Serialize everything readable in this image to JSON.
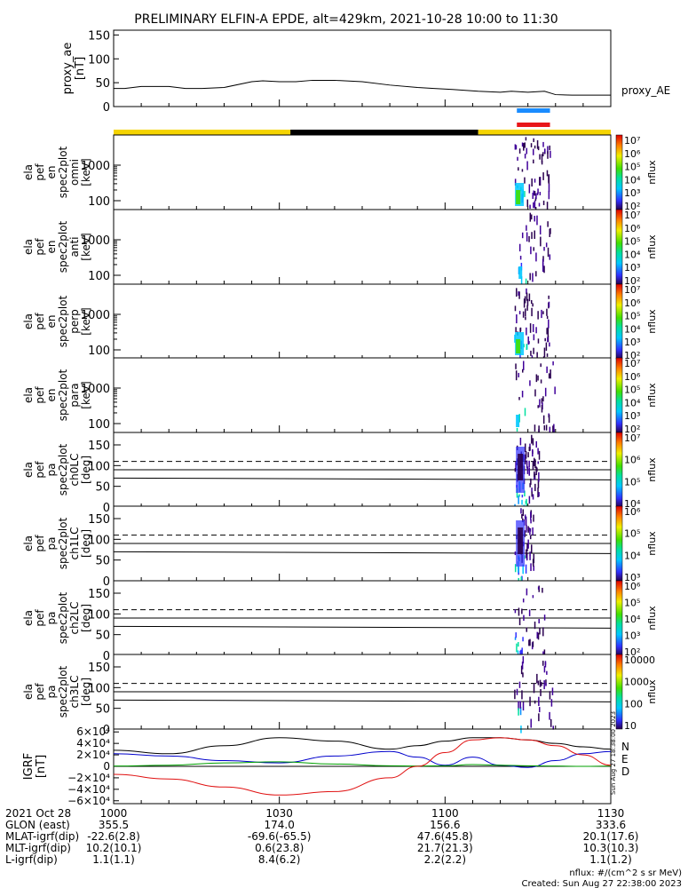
{
  "title": "PRELIMINARY ELFIN-A EPDE, alt=429km, 2021-10-28 10:00 to 11:30",
  "footer": {
    "units": "nflux: #/(cm^2 s sr MeV)",
    "created": "Created: Sun Aug 27 22:38:00 2023",
    "side_stamp": "Sun Aug 27 18:38:00 2023"
  },
  "chart_data": {
    "type": "multi-panel",
    "x_range": [
      "10:00",
      "11:30"
    ],
    "panels": [
      {
        "id": "proxy_ae",
        "type": "line",
        "ylabel": [
          "proxy_ae",
          "[nT]"
        ],
        "legend": "proxy_AE",
        "ylim": [
          0,
          160
        ],
        "yticks": [
          "150",
          "100",
          "50",
          "0"
        ],
        "x_min": [
          0,
          2,
          5,
          10,
          13,
          16,
          20,
          25,
          27,
          30,
          33,
          36,
          40,
          45,
          50,
          55,
          58,
          61,
          66,
          70,
          72,
          75,
          78,
          80,
          83,
          86,
          90
        ],
        "values": [
          38,
          38,
          42,
          42,
          38,
          38,
          40,
          52,
          54,
          52,
          52,
          55,
          55,
          52,
          45,
          40,
          38,
          36,
          32,
          30,
          32,
          30,
          32,
          25,
          24,
          24,
          24
        ]
      },
      {
        "id": "ephemeris_bar",
        "type": "segments",
        "segments": [
          {
            "from_min": 0,
            "to_min": 32,
            "color": "#f5d400"
          },
          {
            "from_min": 32,
            "to_min": 66,
            "color": "#000000"
          },
          {
            "from_min": 66,
            "to_min": 90,
            "color": "#f5d400"
          }
        ]
      },
      {
        "id": "science_zones",
        "type": "segments",
        "segments": [
          {
            "from_min": 73,
            "to_min": 79,
            "color": "#1a8cff",
            "row": 0
          },
          {
            "from_min": 73,
            "to_min": 79,
            "color": "#e8161a",
            "row": 1
          }
        ]
      },
      {
        "id": "en_omni",
        "type": "heatmap",
        "ylabel": [
          "ela",
          "pef",
          "en",
          "spec2plot",
          "omni",
          "[keV]"
        ],
        "yticks": [
          "1000",
          "100"
        ],
        "colorbar": {
          "label": "nflux",
          "ticks": [
            "10⁷",
            "10⁶",
            "10⁵",
            "10⁴",
            "10³",
            "10²"
          ]
        },
        "activity_min": [
          72.5,
          79
        ],
        "activity_level": 0.9
      },
      {
        "id": "en_anti",
        "type": "heatmap",
        "ylabel": [
          "ela",
          "pef",
          "en",
          "spec2plot",
          "anti",
          "[keV]"
        ],
        "yticks": [
          "1000",
          "100"
        ],
        "colorbar": {
          "label": "nflux",
          "ticks": [
            "10⁷",
            "10⁶",
            "10⁵",
            "10⁴",
            "10³",
            "10²"
          ]
        },
        "activity_min": [
          73,
          79
        ],
        "activity_level": 0.3
      },
      {
        "id": "en_perp",
        "type": "heatmap",
        "ylabel": [
          "ela",
          "pef",
          "en",
          "spec2plot",
          "perp",
          "[keV]"
        ],
        "yticks": [
          "1000",
          "100"
        ],
        "colorbar": {
          "label": "nflux",
          "ticks": [
            "10⁷",
            "10⁶",
            "10⁵",
            "10⁴",
            "10³",
            "10²"
          ]
        },
        "activity_min": [
          72.5,
          79
        ],
        "activity_level": 0.8
      },
      {
        "id": "en_para",
        "type": "heatmap",
        "ylabel": [
          "ela",
          "pef",
          "en",
          "spec2plot",
          "para",
          "[keV]"
        ],
        "yticks": [
          "1000",
          "100"
        ],
        "colorbar": {
          "label": "nflux",
          "ticks": [
            "10⁷",
            "10⁶",
            "10⁵",
            "10⁴",
            "10³",
            "10²"
          ]
        },
        "activity_min": [
          72.5,
          80
        ],
        "activity_level": 0.4
      },
      {
        "id": "pa_ch0LC",
        "type": "heatmap",
        "ylabel": [
          "ela",
          "pef",
          "pa",
          "spec2plot",
          "ch0LC",
          "[deg]"
        ],
        "yticks": [
          "150",
          "100",
          "50",
          "0"
        ],
        "ylim": [
          0,
          180
        ],
        "colorbar": {
          "label": "nflux",
          "ticks": [
            "10⁷",
            "10⁶",
            "10⁵",
            "10⁴"
          ]
        },
        "lc_lines": {
          "dashed": 110,
          "solid": [
            90,
            70
          ]
        },
        "activity_min": [
          72.5,
          77
        ],
        "activity_level": 1.0
      },
      {
        "id": "pa_ch1LC",
        "type": "heatmap",
        "ylabel": [
          "ela",
          "pef",
          "pa",
          "spec2plot",
          "ch1LC",
          "[deg]"
        ],
        "yticks": [
          "150",
          "100",
          "50",
          "0"
        ],
        "ylim": [
          0,
          180
        ],
        "colorbar": {
          "label": "nflux",
          "ticks": [
            "10⁶",
            "10⁵",
            "10⁴",
            "10³"
          ]
        },
        "lc_lines": {
          "dashed": 110,
          "solid": [
            90,
            70
          ]
        },
        "activity_min": [
          72.5,
          76
        ],
        "activity_level": 0.7
      },
      {
        "id": "pa_ch2LC",
        "type": "heatmap",
        "ylabel": [
          "ela",
          "pef",
          "pa",
          "spec2plot",
          "ch2LC",
          "[deg]"
        ],
        "yticks": [
          "150",
          "100",
          "50",
          "0"
        ],
        "ylim": [
          0,
          180
        ],
        "colorbar": {
          "label": "nflux",
          "ticks": [
            "10⁶",
            "10⁵",
            "10⁴",
            "10³",
            "10²"
          ]
        },
        "lc_lines": {
          "dashed": 110,
          "solid": [
            90,
            70
          ]
        },
        "activity_min": [
          72.5,
          78
        ],
        "activity_level": 0.3
      },
      {
        "id": "pa_ch3LC",
        "type": "heatmap",
        "ylabel": [
          "ela",
          "pef",
          "pa",
          "spec2plot",
          "ch3LC",
          "[deg]"
        ],
        "yticks": [
          "150",
          "100",
          "50",
          "0"
        ],
        "ylim": [
          0,
          180
        ],
        "colorbar": {
          "label": "nflux",
          "ticks": [
            "10000",
            "1000",
            "100",
            "10"
          ]
        },
        "lc_lines": {
          "dashed": 110,
          "solid": [
            90,
            70
          ]
        },
        "activity_min": [
          72.5,
          79.5
        ],
        "activity_level": 0.4
      },
      {
        "id": "igrf",
        "type": "line",
        "ylabel": [
          "IGRF",
          "[nT]"
        ],
        "ylim": [
          -65000,
          65000
        ],
        "yticks": [
          "6×10⁴",
          "4×10⁴",
          "2×10⁴",
          "0",
          "−2×10⁴",
          "−4×10⁴",
          "−6×10⁴"
        ],
        "ytick_values": [
          60000,
          40000,
          20000,
          0,
          -20000,
          -40000,
          -60000
        ],
        "legend": [
          {
            "label": "N",
            "color": "#0000cc"
          },
          {
            "label": "E",
            "color": "#00a000"
          },
          {
            "label": "D",
            "color": "#e01010"
          }
        ],
        "x_min": [
          0,
          10,
          20,
          30,
          40,
          50,
          55,
          60,
          65,
          70,
          75,
          80,
          85,
          90
        ],
        "series": [
          {
            "name": "total",
            "color": "#000000",
            "values": [
              28000,
              22000,
              36000,
              50000,
              44000,
              30000,
              36000,
              44000,
              50000,
              50000,
              46000,
              40000,
              34000,
              30000
            ]
          },
          {
            "name": "N",
            "color": "#0000cc",
            "values": [
              22000,
              18000,
              10000,
              6000,
              18000,
              26000,
              16000,
              2000,
              16000,
              2000,
              -2000,
              10000,
              22000,
              26000
            ]
          },
          {
            "name": "E",
            "color": "#00a000",
            "values": [
              500,
              2000,
              6000,
              8000,
              4000,
              1000,
              500,
              1000,
              3000,
              2000,
              1000,
              500,
              0,
              500
            ]
          },
          {
            "name": "D",
            "color": "#e01010",
            "values": [
              -14000,
              -22000,
              -36000,
              -50000,
              -44000,
              -20000,
              0,
              24000,
              46000,
              50000,
              46000,
              36000,
              20000,
              2000
            ]
          }
        ]
      }
    ],
    "x_axis_table": {
      "labels": [
        "2021 Oct 28",
        "GLON (east)",
        "MLAT-igrf(dip)",
        "MLT-igrf(dip)",
        "L-igrf(dip)"
      ],
      "columns": [
        {
          "time": "1000",
          "values": [
            "355.5",
            "-22.6(2.8)",
            "10.2(10.1)",
            "1.1(1.1)"
          ]
        },
        {
          "time": "1030",
          "values": [
            "174.0",
            "-69.6(-65.5)",
            "0.6(23.8)",
            "8.4(6.2)"
          ]
        },
        {
          "time": "1100",
          "values": [
            "156.6",
            "47.6(45.8)",
            "21.7(21.3)",
            "2.2(2.2)"
          ]
        },
        {
          "time": "1130",
          "values": [
            "333.6",
            "20.1(17.6)",
            "10.3(10.3)",
            "1.1(1.2)"
          ]
        }
      ]
    }
  }
}
